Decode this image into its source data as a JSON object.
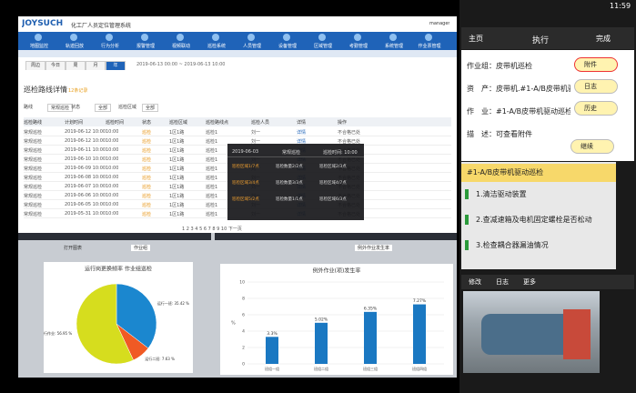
{
  "desktop": {
    "brand": "JOYSUCH",
    "system_title": "化工厂人员定位管理系统",
    "user": "manager",
    "nav": [
      "地图监控",
      "轨迹回放",
      "行为分析",
      "报警管理",
      "视频联动",
      "巡检系统",
      "人员管理",
      "设备管理",
      "区域管理",
      "考勤管理",
      "系统管理",
      "作业票管理"
    ],
    "time_tabs": [
      "周边",
      "今日",
      "周",
      "月",
      "年"
    ],
    "date_range": "2019-06-13 00:00 ~ 2019-06-13 10:00",
    "page_title": "巡检路线详情",
    "count": "12条记录",
    "filters": [
      "路线",
      "常规巡检",
      "状态",
      "全部",
      "巡检区域",
      "全部"
    ],
    "table": {
      "headers": [
        "巡检路线",
        "计划时间",
        "巡检时间",
        "状态",
        "巡检区域",
        "巡检路线点",
        "巡检人员",
        "详情",
        "操作"
      ],
      "rows": [
        [
          "常规巡检",
          "2019-06-12 10:00",
          "10:00",
          "巡检",
          "1区1路",
          "巡检1",
          "刘一",
          "详情",
          "不合格已处"
        ],
        [
          "常规巡检",
          "2019-06-12 10:00",
          "10:00",
          "巡检",
          "1区1路",
          "巡检1",
          "刘一",
          "详情",
          "不合格已处"
        ],
        [
          "常规巡检",
          "2019-06-11 10:00",
          "10:00",
          "巡检",
          "1区1路",
          "巡检1",
          "刘一",
          "详情",
          "不合格已处"
        ],
        [
          "常规巡检",
          "2019-06-10 10:00",
          "10:00",
          "巡检",
          "1区1路",
          "巡检1",
          "刘一",
          "详情",
          "不合格已处"
        ],
        [
          "常规巡检",
          "2019-06-09 10:00",
          "10:00",
          "巡检",
          "1区1路",
          "巡检1",
          "刘一",
          "详情",
          "不合格已处"
        ],
        [
          "常规巡检",
          "2019-06-08 10:00",
          "10:00",
          "巡检",
          "1区1路",
          "巡检1",
          "刘一",
          "详情",
          "不合格已处"
        ],
        [
          "常规巡检",
          "2019-06-07 10:00",
          "10:00",
          "巡检",
          "1区1路",
          "巡检1",
          "刘一",
          "详情",
          "不合格已处"
        ],
        [
          "常规巡检",
          "2019-06-06 10:00",
          "10:00",
          "巡检",
          "1区1路",
          "巡检1",
          "刘一",
          "详情",
          "不合格已处"
        ],
        [
          "常规巡检",
          "2019-06-05 10:00",
          "10:00",
          "巡检",
          "1区1路",
          "巡检1",
          "刘一",
          "详情",
          "不合格已处"
        ],
        [
          "常规巡检",
          "2019-05-31 10:00",
          "10:00",
          "巡检",
          "1区1路",
          "巡检1",
          "刘一",
          "详情",
          "不合格已处"
        ]
      ]
    },
    "pagination": "1 2 3 4 5 6 7 8 9 10 下一页",
    "popup": {
      "title": "2019-06-03",
      "subtitle": "常规巡检",
      "time": "巡检时间: 10:00",
      "cells": [
        "巡检区域1/7点",
        "巡检数量2/2点",
        "巡检区域2/3点",
        "巡检区域3/4点",
        "巡检数量3/3点",
        "巡检区域4/7点",
        "巡检区域5/2点",
        "巡检数量1/1点",
        "巡检区域6/3点"
      ]
    },
    "panel_controls": [
      "打开图表",
      "作业组",
      "例外作业发生率"
    ]
  },
  "chart_data": [
    {
      "type": "pie",
      "title": "运行岗更换频率 作业组巡检",
      "categories": [
        "运行一班",
        "运行二班",
        "运行作业"
      ],
      "values": [
        35.42,
        7.63,
        56.95
      ],
      "value_labels": [
        "运行一班: 35.42 %",
        "运行二班: 7.63 %",
        "运行作业: 56.95 %"
      ],
      "colors": [
        "#1b87cf",
        "#f05a24",
        "#d6dd1e"
      ]
    },
    {
      "type": "bar",
      "title": "例外作业(项)发生率",
      "ylabel": "%",
      "categories": [
        "班组一组",
        "班组二组",
        "班组三组",
        "班组四组"
      ],
      "values": [
        3.3,
        5.02,
        6.35,
        7.27
      ],
      "value_labels": [
        "3.3%",
        "5.02%",
        "6.35%",
        "7.27%"
      ],
      "color": "#1a78c2",
      "ylim": [
        0,
        10
      ],
      "yticks": [
        0,
        2,
        4,
        6,
        8,
        10
      ],
      "grid": true
    }
  ],
  "phone": {
    "status_time": "11:59",
    "back": "主页",
    "title": "执行",
    "done": "完成",
    "fields": [
      {
        "label": "作业组：",
        "value": "皮带机巡检"
      },
      {
        "label": "资　产：",
        "value": "皮带机.#1-A/B皮带机驱动"
      },
      {
        "label": "作　业：",
        "value": "#1-A/B皮带机驱动巡检"
      },
      {
        "label": "描　述：",
        "value": "可查看附件"
      }
    ],
    "buttons": [
      "附件",
      "日志",
      "历史",
      "继续"
    ],
    "task_header": "#1-A/B皮带机驱动巡检",
    "steps": [
      "1.清洁驱动装置",
      "2.查减速箱及电机固定螺栓是否松动",
      "3.检查耦合器漏油情况"
    ],
    "toolbar": [
      "修改",
      "日志",
      "更多"
    ]
  }
}
